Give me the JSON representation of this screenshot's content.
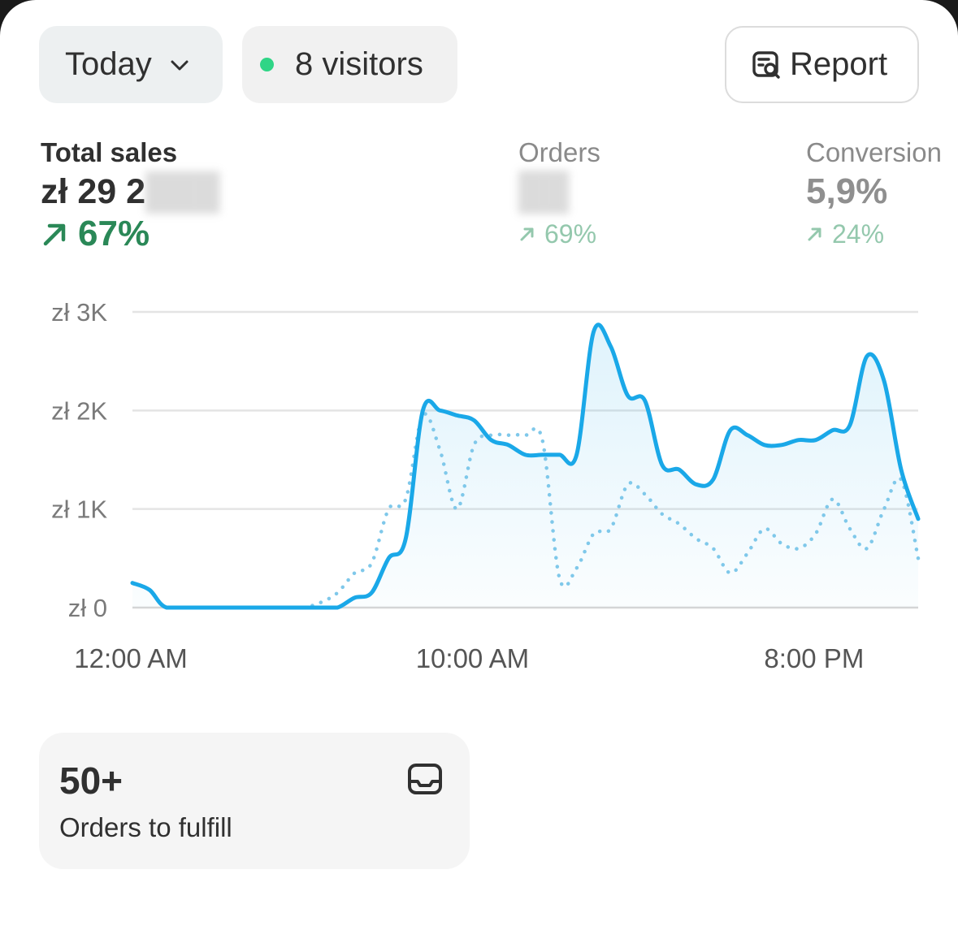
{
  "header": {
    "date_filter": "Today",
    "visitors": "8 visitors",
    "report_label": "Report"
  },
  "metrics": {
    "sales": {
      "label": "Total sales",
      "value": "zł 29 2",
      "delta": "67%"
    },
    "orders": {
      "label": "Orders",
      "value": "",
      "delta": "69%"
    },
    "conversion": {
      "label": "Conversion",
      "value": "5,9%",
      "delta": "24%"
    }
  },
  "chart_data": {
    "type": "line",
    "y_ticks": [
      "zł 0",
      "zł 1K",
      "zł 2K",
      "zł 3K"
    ],
    "x_ticks": [
      "12:00 AM",
      "10:00 AM",
      "8:00 PM"
    ],
    "ylim": [
      0,
      3000
    ],
    "grid": true,
    "colors": {
      "current": "#1aa8e8",
      "previous": "#7fc8ea"
    },
    "series": [
      {
        "style": "solid",
        "x": [
          0,
          0.5,
          1,
          2,
          3,
          4,
          5,
          5.5,
          6,
          6.5,
          7,
          7.5,
          8,
          8.5,
          9,
          9.5,
          10,
          10.5,
          11,
          11.5,
          12,
          12.5,
          13,
          13.5,
          14,
          14.5,
          15,
          15.5,
          16,
          16.5,
          17,
          17.5,
          18,
          18.5,
          19,
          19.5,
          20,
          20.5,
          21,
          21.5,
          22,
          22.5,
          23
        ],
        "values": [
          250,
          180,
          0,
          0,
          0,
          0,
          0,
          0,
          0,
          100,
          150,
          500,
          700,
          2000,
          2000,
          1950,
          1900,
          1700,
          1650,
          1550,
          1550,
          1550,
          1550,
          2800,
          2650,
          2150,
          2100,
          1450,
          1400,
          1250,
          1300,
          1800,
          1750,
          1650,
          1650,
          1700,
          1700,
          1800,
          1850,
          2550,
          2300,
          1400,
          900
        ]
      },
      {
        "style": "dotted",
        "x": [
          0,
          0.5,
          1,
          2,
          3,
          4,
          4.5,
          5,
          5.5,
          6,
          6.5,
          7,
          7.5,
          8,
          8.5,
          9,
          9.5,
          10,
          10.5,
          11,
          11.5,
          12,
          12.5,
          13,
          13.5,
          14,
          14.5,
          15,
          15.5,
          16,
          16.5,
          17,
          17.5,
          18,
          18.5,
          19,
          19.5,
          20,
          20.5,
          21,
          21.5,
          22,
          22.5,
          23
        ],
        "values": [
          250,
          180,
          0,
          0,
          0,
          0,
          0,
          0,
          50,
          150,
          350,
          450,
          1000,
          1100,
          1950,
          1600,
          1000,
          1650,
          1750,
          1750,
          1750,
          1700,
          300,
          400,
          750,
          800,
          1250,
          1150,
          950,
          850,
          700,
          600,
          350,
          550,
          800,
          650,
          600,
          750,
          1100,
          800,
          600,
          1000,
          1300,
          500
        ]
      }
    ]
  },
  "fulfill": {
    "count": "50+",
    "label": "Orders to fulfill",
    "icon": "inbox-icon"
  }
}
